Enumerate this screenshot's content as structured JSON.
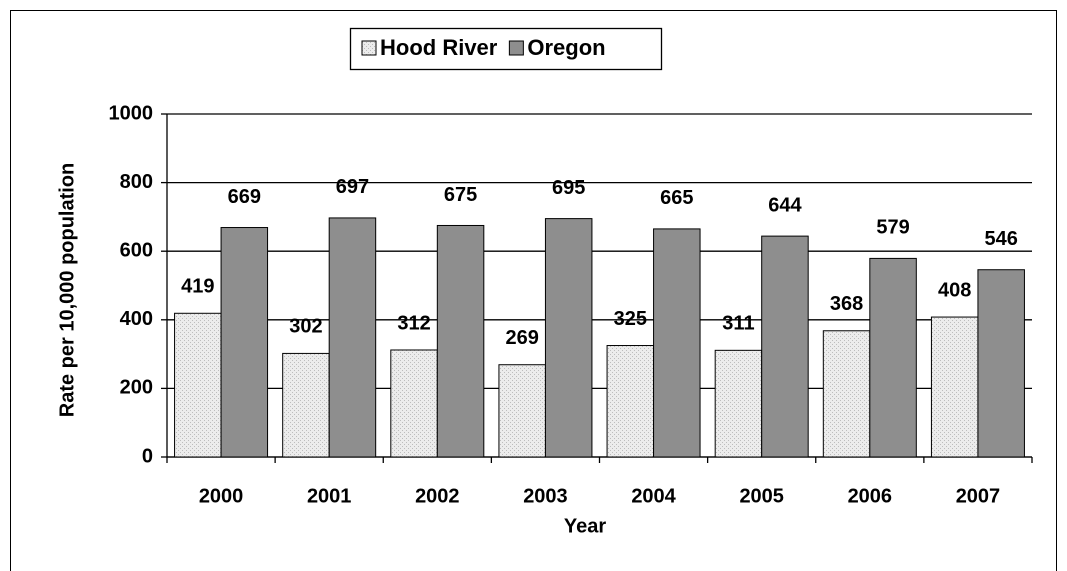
{
  "chart_data": {
    "type": "bar",
    "x_label": "Year",
    "y_label": "Rate per 10,000 population",
    "categories": [
      "2000",
      "2001",
      "2002",
      "2003",
      "2004",
      "2005",
      "2006",
      "2007"
    ],
    "series": [
      {
        "name": "Hood River",
        "color": "#e6e6e6",
        "values": [
          419,
          302,
          312,
          269,
          325,
          311,
          368,
          408
        ]
      },
      {
        "name": "Oregon",
        "color": "#8e8e8e",
        "values": [
          669,
          697,
          675,
          695,
          665,
          644,
          579,
          546
        ]
      }
    ],
    "ylim": [
      0,
      1000
    ],
    "yticks": [
      0,
      200,
      400,
      600,
      800,
      1000
    ],
    "grid": true,
    "legend": "top"
  }
}
